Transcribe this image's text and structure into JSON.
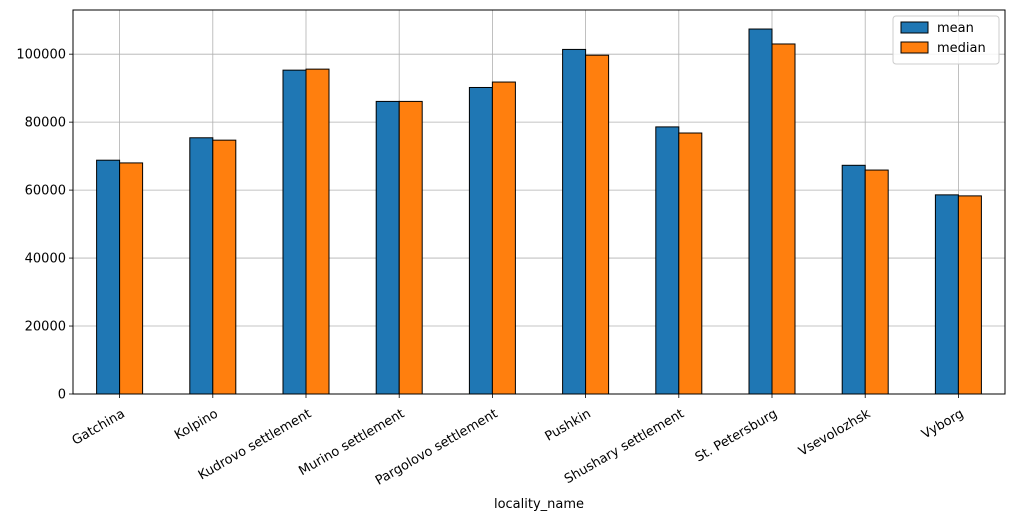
{
  "chart_data": {
    "type": "bar",
    "title": "",
    "xlabel": "locality_name",
    "ylabel": "",
    "categories": [
      "Gatchina",
      "Kolpino",
      "Kudrovo settlement",
      "Murino settlement",
      "Pargolovo settlement",
      "Pushkin",
      "Shushary settlement",
      "St. Petersburg",
      "Vsevolozhsk",
      "Vyborg"
    ],
    "series": [
      {
        "name": "mean",
        "color": "#1f77b4",
        "values": [
          68800,
          75400,
          95300,
          86100,
          90200,
          101400,
          78600,
          107400,
          67300,
          58600
        ]
      },
      {
        "name": "median",
        "color": "#ff7f0e",
        "values": [
          68000,
          74700,
          95600,
          86100,
          91800,
          99700,
          76800,
          103000,
          65900,
          58300
        ]
      }
    ],
    "ylim": [
      0,
      113000
    ],
    "yticks": [
      0,
      20000,
      40000,
      60000,
      80000,
      100000
    ],
    "ytick_labels": [
      "0",
      "20000",
      "40000",
      "60000",
      "80000",
      "100000"
    ],
    "grid": true,
    "legend_position": "top-right"
  }
}
